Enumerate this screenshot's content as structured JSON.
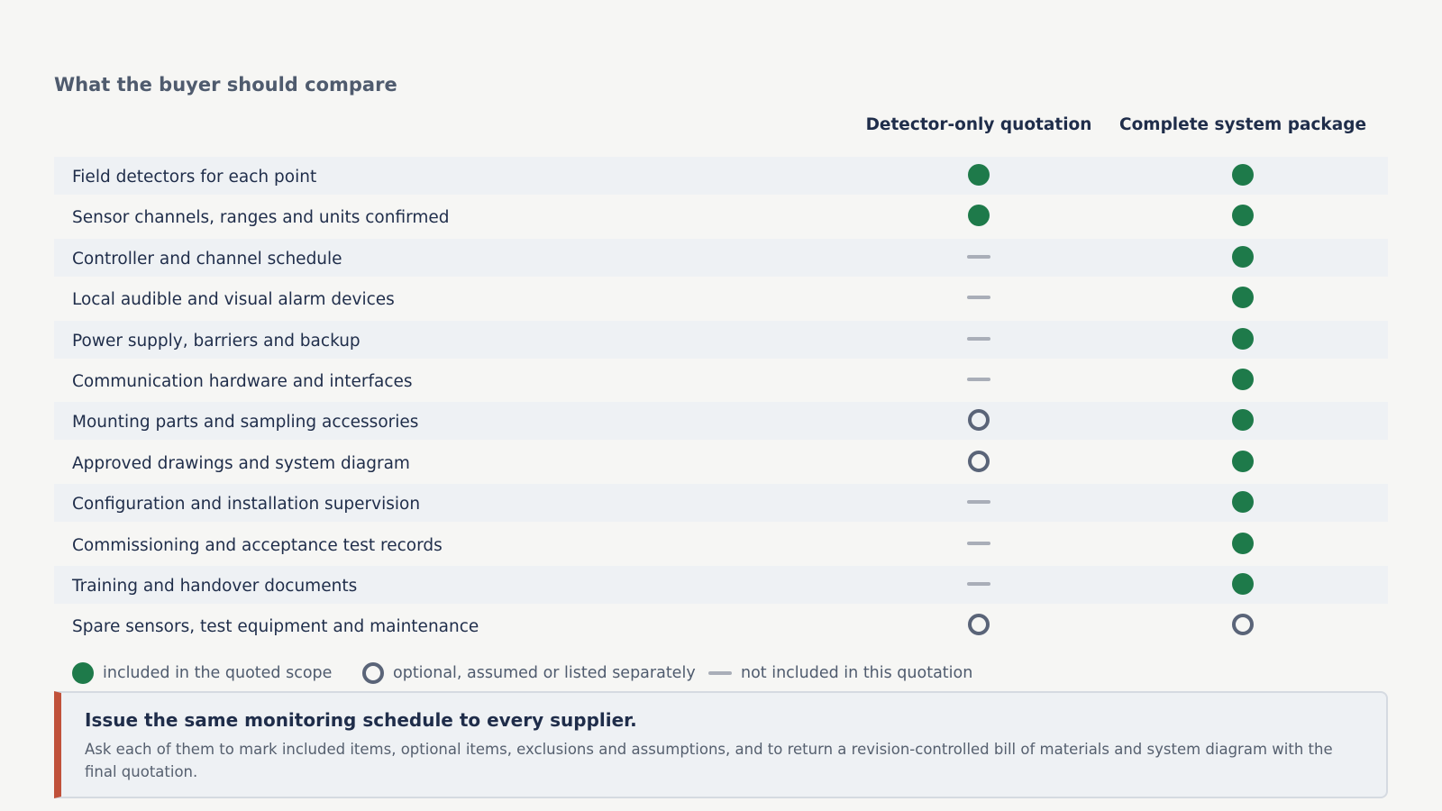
{
  "header": {
    "title": "What the buyer should compare"
  },
  "table": {
    "columns": [
      "Detector-only quotation",
      "Complete system package"
    ],
    "rows": [
      {
        "label": "Field detectors for each point",
        "cells": [
          "included",
          "included"
        ]
      },
      {
        "label": "Sensor channels, ranges and units confirmed",
        "cells": [
          "included",
          "included"
        ]
      },
      {
        "label": "Controller and channel schedule",
        "cells": [
          "excluded",
          "included"
        ]
      },
      {
        "label": "Local audible and visual alarm devices",
        "cells": [
          "excluded",
          "included"
        ]
      },
      {
        "label": "Power supply, barriers and backup",
        "cells": [
          "excluded",
          "included"
        ]
      },
      {
        "label": "Communication hardware and interfaces",
        "cells": [
          "excluded",
          "included"
        ]
      },
      {
        "label": "Mounting parts and sampling accessories",
        "cells": [
          "optional",
          "included"
        ]
      },
      {
        "label": "Approved drawings and system diagram",
        "cells": [
          "optional",
          "included"
        ]
      },
      {
        "label": "Configuration and installation supervision",
        "cells": [
          "excluded",
          "included"
        ]
      },
      {
        "label": "Commissioning and acceptance test records",
        "cells": [
          "excluded",
          "included"
        ]
      },
      {
        "label": "Training and handover documents",
        "cells": [
          "excluded",
          "included"
        ]
      },
      {
        "label": "Spare sensors, test equipment and maintenance",
        "cells": [
          "optional",
          "optional"
        ]
      }
    ]
  },
  "legend": [
    {
      "status": "included",
      "label": "included in the quoted scope"
    },
    {
      "status": "optional",
      "label": "optional, assumed or listed separately"
    },
    {
      "status": "excluded",
      "label": "not included in this quotation"
    }
  ],
  "callout": {
    "title": "Issue the same monitoring schedule to every supplier.",
    "body": "Ask each of them to mark included items, optional items, exclusions and assumptions, and to return a revision-controlled bill of materials and system diagram with the final quotation."
  }
}
